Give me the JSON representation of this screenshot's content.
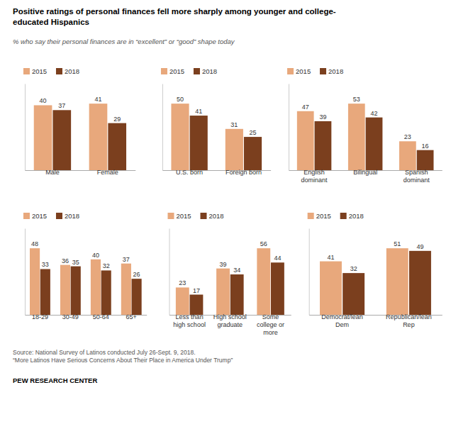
{
  "title": "Positive ratings of personal finances fell more sharply among younger and college-\neducated Hispanics",
  "subtitle": "% who say their personal finances are in “excellent” or “good” shape today",
  "annotations": [
    "Source: National Survey of Latinos conducted July 26-Sept. 9, 2018.\n“More Latinos Have Serious Concerns About Their Place in America Under Trump”",
    "PEW RESEARCH CENTER"
  ],
  "chart_data": [
    {
      "type": "bar",
      "categories": [
        "Male",
        "Female"
      ],
      "series": [
        {
          "name": "2015",
          "color": "#E8A87C",
          "values": [
            40,
            41
          ]
        },
        {
          "name": "2018",
          "color": "#7B3F1E",
          "values": [
            37,
            29
          ]
        }
      ],
      "ylim": [
        0,
        53.3
      ],
      "grid": false,
      "legend": "upper left",
      "data_labels": true,
      "tick_labels": "x"
    },
    {
      "type": "bar",
      "categories": [
        "U.S. born",
        "Foreign born"
      ],
      "series": [
        {
          "name": "2015",
          "color": "#E8A87C",
          "values": [
            50,
            31
          ]
        },
        {
          "name": "2018",
          "color": "#7B3F1E",
          "values": [
            41,
            25
          ]
        }
      ],
      "ylim": [
        0,
        65
      ],
      "grid": false,
      "legend": "upper left",
      "data_labels": true,
      "tick_labels": "x"
    },
    {
      "type": "bar",
      "categories": [
        "English\ndominant",
        "Bilingual",
        "Spanish\ndominant"
      ],
      "series": [
        {
          "name": "2015",
          "color": "#E8A87C",
          "values": [
            47,
            53,
            23
          ]
        },
        {
          "name": "2018",
          "color": "#7B3F1E",
          "values": [
            39,
            42,
            16
          ]
        }
      ],
      "ylim": [
        0,
        68.9
      ],
      "grid": false,
      "legend": "upper left",
      "data_labels": true,
      "tick_labels": "x"
    },
    {
      "type": "bar",
      "categories": [
        "18-29",
        "30-49",
        "50-64",
        "65+"
      ],
      "series": [
        {
          "name": "2015",
          "color": "#E8A87C",
          "values": [
            48,
            36,
            40,
            37
          ]
        },
        {
          "name": "2018",
          "color": "#7B3F1E",
          "values": [
            33,
            35,
            32,
            26
          ]
        }
      ],
      "ylim": [
        0,
        62.4
      ],
      "grid": false,
      "legend": "upper left",
      "data_labels": true,
      "tick_labels": "x"
    },
    {
      "type": "bar",
      "categories": [
        "Less than\nhigh school",
        "High school\ngraduate",
        "Some\ncollege or\nmore"
      ],
      "series": [
        {
          "name": "2015",
          "color": "#E8A87C",
          "values": [
            23,
            39,
            56
          ]
        },
        {
          "name": "2018",
          "color": "#7B3F1E",
          "values": [
            17,
            34,
            44
          ]
        }
      ],
      "ylim": [
        0,
        72.8
      ],
      "grid": false,
      "legend": "upper left",
      "data_labels": true,
      "tick_labels": "x"
    },
    {
      "type": "bar",
      "categories": [
        "Democrat/lean\nDem",
        "Republican/lean\nRep"
      ],
      "series": [
        {
          "name": "2015",
          "color": "#E8A87C",
          "values": [
            41,
            51
          ]
        },
        {
          "name": "2018",
          "color": "#7B3F1E",
          "values": [
            32,
            49
          ]
        }
      ],
      "ylim": [
        0,
        66.3
      ],
      "grid": false,
      "legend": "upper left",
      "data_labels": true,
      "tick_labels": "x"
    }
  ]
}
